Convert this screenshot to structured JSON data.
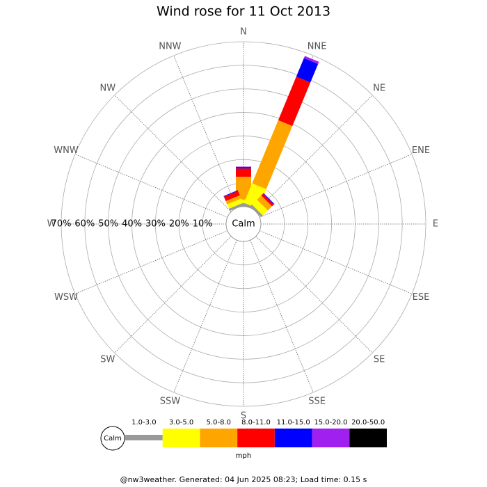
{
  "chart_data": {
    "type": "wind_rose",
    "title": "Wind rose for 11 Oct 2013",
    "directions": [
      "N",
      "NNE",
      "NE",
      "ENE",
      "E",
      "ESE",
      "SE",
      "SSE",
      "S",
      "SSW",
      "SW",
      "WSW",
      "W",
      "WNW",
      "NW",
      "NNW"
    ],
    "series": [
      {
        "name": "1.0-3.0",
        "color": "#999999",
        "values": [
          1,
          1,
          1,
          0,
          0,
          0,
          0,
          0,
          0,
          0,
          0,
          0,
          0,
          0,
          0,
          1
        ]
      },
      {
        "name": "3.0-5.0",
        "color": "#ffff00",
        "values": [
          2,
          9,
          3,
          0,
          0,
          0,
          0,
          0,
          0,
          0,
          0,
          0,
          0,
          0,
          0,
          2
        ]
      },
      {
        "name": "5.0-8.0",
        "color": "#ffa500",
        "values": [
          9.7,
          29,
          2.5,
          0,
          0,
          0,
          0,
          0,
          0,
          0,
          0,
          0,
          0,
          0,
          0,
          1.5
        ]
      },
      {
        "name": "8.0-11.0",
        "color": "#ff0000",
        "values": [
          3.5,
          20,
          1,
          0,
          0,
          0,
          0,
          0,
          0,
          0,
          0,
          0,
          0,
          0,
          0,
          2
        ]
      },
      {
        "name": "11.0-15.0",
        "color": "#0000ff",
        "values": [
          0.6,
          8.5,
          0.3,
          0,
          0,
          0,
          0,
          0,
          0,
          0,
          0,
          0,
          0,
          0,
          0,
          0.3
        ]
      },
      {
        "name": "15.0-20.0",
        "color": "#a020f0",
        "values": [
          0.2,
          1,
          0.2,
          0,
          0,
          0,
          0,
          0,
          0,
          0,
          0,
          0,
          0,
          0,
          0,
          0
        ]
      },
      {
        "name": "20.0-50.0",
        "color": "#000000",
        "values": [
          0,
          0,
          0,
          0,
          0,
          0,
          0,
          0,
          0,
          0,
          0,
          0,
          0,
          0,
          0,
          0
        ]
      }
    ],
    "rlim": [
      0,
      70
    ],
    "rticks": [
      {
        "value": 10,
        "label": "10%"
      },
      {
        "value": 20,
        "label": "20%"
      },
      {
        "value": 30,
        "label": "30%"
      },
      {
        "value": 40,
        "label": "40%"
      },
      {
        "value": 50,
        "label": "50%"
      },
      {
        "value": 60,
        "label": "60%"
      },
      {
        "value": 70,
        "label": "70%"
      }
    ],
    "calm_label": "Calm",
    "unit": "mph",
    "footer": "@nw3weather. Generated: 04 Jun 2025 08:23; Load time: 0.15 s"
  }
}
